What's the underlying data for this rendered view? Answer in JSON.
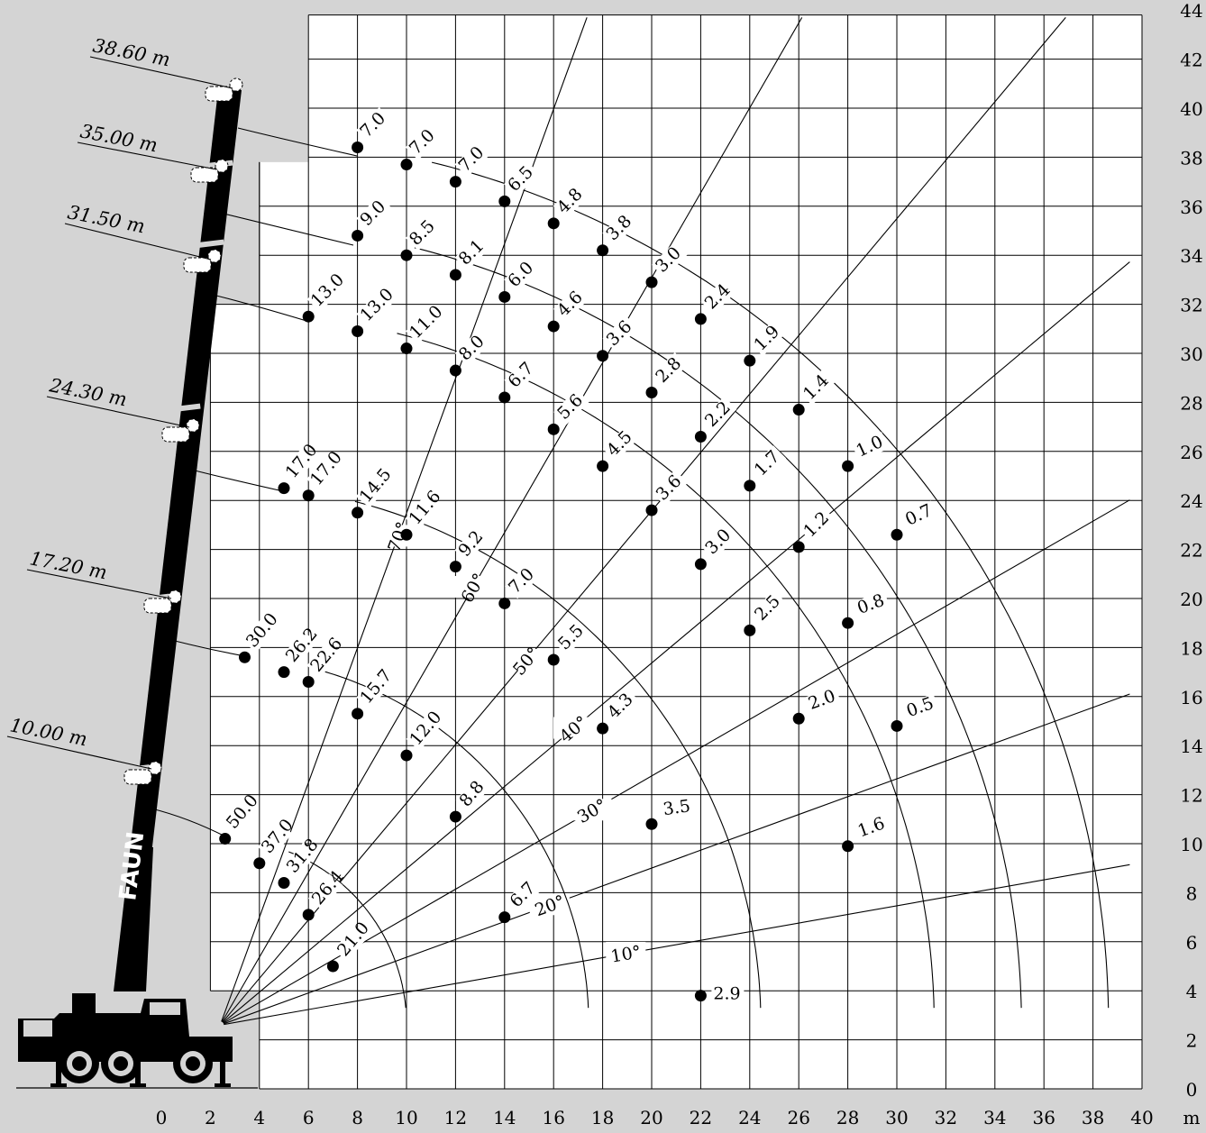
{
  "chart_data": {
    "type": "scatter",
    "title": "",
    "xlabel": "",
    "ylabel": "",
    "x_unit": "m",
    "xlim": [
      0,
      40
    ],
    "ylim": [
      0,
      44
    ],
    "x_ticks": [
      0,
      2,
      4,
      6,
      8,
      10,
      12,
      14,
      16,
      18,
      20,
      22,
      24,
      26,
      28,
      30,
      32,
      34,
      36,
      38,
      40
    ],
    "y_ticks": [
      0,
      2,
      4,
      6,
      8,
      10,
      12,
      14,
      16,
      18,
      20,
      22,
      24,
      26,
      28,
      30,
      32,
      34,
      36,
      38,
      40,
      42,
      44
    ],
    "grid": true,
    "boom_lengths": [
      "10.00 m",
      "17.20 m",
      "24.30 m",
      "31.50 m",
      "35.00 m",
      "38.60 m"
    ],
    "angles": [
      "10°",
      "20°",
      "30°",
      "40°",
      "50°",
      "60°",
      "70°"
    ],
    "series": [
      {
        "name": "10.00 m",
        "points": [
          {
            "x": 2.6,
            "y": 10.2,
            "label": "50.0"
          },
          {
            "x": 4.0,
            "y": 9.2,
            "label": "37.0"
          },
          {
            "x": 5.0,
            "y": 8.4,
            "label": "31.8"
          },
          {
            "x": 6.0,
            "y": 7.1,
            "label": "26.4"
          },
          {
            "x": 7.0,
            "y": 5.0,
            "label": "21.0"
          }
        ]
      },
      {
        "name": "17.20 m",
        "points": [
          {
            "x": 3.4,
            "y": 17.6,
            "label": "30.0"
          },
          {
            "x": 5.0,
            "y": 17.0,
            "label": "26.2"
          },
          {
            "x": 6.0,
            "y": 16.6,
            "label": "22.6"
          },
          {
            "x": 8.0,
            "y": 15.3,
            "label": "15.7"
          },
          {
            "x": 10.0,
            "y": 13.6,
            "label": "12.0"
          },
          {
            "x": 12.0,
            "y": 11.1,
            "label": "8.8"
          },
          {
            "x": 14.0,
            "y": 7.0,
            "label": "6.7"
          }
        ]
      },
      {
        "name": "24.30 m",
        "points": [
          {
            "x": 5.0,
            "y": 24.5,
            "label": "17.0"
          },
          {
            "x": 6.0,
            "y": 24.2,
            "label": "17.0"
          },
          {
            "x": 8.0,
            "y": 23.5,
            "label": "14.5"
          },
          {
            "x": 10.0,
            "y": 22.6,
            "label": "11.6"
          },
          {
            "x": 12.0,
            "y": 21.3,
            "label": "9.2"
          },
          {
            "x": 14.0,
            "y": 19.8,
            "label": "7.0"
          },
          {
            "x": 16.0,
            "y": 17.5,
            "label": "5.5"
          },
          {
            "x": 18.0,
            "y": 14.7,
            "label": "4.3"
          },
          {
            "x": 20.0,
            "y": 10.8,
            "label": "3.5"
          },
          {
            "x": 22.0,
            "y": 3.8,
            "label": "2.9"
          }
        ]
      },
      {
        "name": "31.50 m",
        "points": [
          {
            "x": 6.0,
            "y": 31.5,
            "label": "13.0"
          },
          {
            "x": 8.0,
            "y": 30.9,
            "label": "13.0"
          },
          {
            "x": 10.0,
            "y": 30.2,
            "label": "11.0"
          },
          {
            "x": 12.0,
            "y": 29.3,
            "label": "8.0"
          },
          {
            "x": 14.0,
            "y": 28.2,
            "label": "6.7"
          },
          {
            "x": 16.0,
            "y": 26.9,
            "label": "5.6"
          },
          {
            "x": 18.0,
            "y": 25.4,
            "label": "4.5"
          },
          {
            "x": 20.0,
            "y": 23.6,
            "label": "3.6"
          },
          {
            "x": 22.0,
            "y": 21.4,
            "label": "3.0"
          },
          {
            "x": 24.0,
            "y": 18.7,
            "label": "2.5"
          },
          {
            "x": 26.0,
            "y": 15.1,
            "label": "2.0"
          },
          {
            "x": 28.0,
            "y": 9.9,
            "label": "1.6"
          }
        ]
      },
      {
        "name": "35.00 m",
        "points": [
          {
            "x": 8.0,
            "y": 34.8,
            "label": "9.0"
          },
          {
            "x": 10.0,
            "y": 34.0,
            "label": "8.5"
          },
          {
            "x": 12.0,
            "y": 33.2,
            "label": "8.1"
          },
          {
            "x": 14.0,
            "y": 32.3,
            "label": "6.0"
          },
          {
            "x": 16.0,
            "y": 31.1,
            "label": "4.6"
          },
          {
            "x": 18.0,
            "y": 29.9,
            "label": "3.6"
          },
          {
            "x": 20.0,
            "y": 28.4,
            "label": "2.8"
          },
          {
            "x": 22.0,
            "y": 26.6,
            "label": "2.2"
          },
          {
            "x": 24.0,
            "y": 24.6,
            "label": "1.7"
          },
          {
            "x": 26.0,
            "y": 22.1,
            "label": "1.2"
          },
          {
            "x": 28.0,
            "y": 19.0,
            "label": "0.8"
          },
          {
            "x": 30.0,
            "y": 14.8,
            "label": "0.5"
          }
        ]
      },
      {
        "name": "38.60 m",
        "points": [
          {
            "x": 8.0,
            "y": 38.4,
            "label": "7.0"
          },
          {
            "x": 10.0,
            "y": 37.7,
            "label": "7.0"
          },
          {
            "x": 12.0,
            "y": 37.0,
            "label": "7.0"
          },
          {
            "x": 14.0,
            "y": 36.2,
            "label": "6.5"
          },
          {
            "x": 16.0,
            "y": 35.3,
            "label": "4.8"
          },
          {
            "x": 18.0,
            "y": 34.2,
            "label": "3.8"
          },
          {
            "x": 20.0,
            "y": 32.9,
            "label": "3.0"
          },
          {
            "x": 22.0,
            "y": 31.4,
            "label": "2.4"
          },
          {
            "x": 24.0,
            "y": 29.7,
            "label": "1.9"
          },
          {
            "x": 26.0,
            "y": 27.7,
            "label": "1.4"
          },
          {
            "x": 28.0,
            "y": 25.4,
            "label": "1.0"
          },
          {
            "x": 30.0,
            "y": 22.6,
            "label": "0.7"
          }
        ]
      }
    ]
  },
  "vehicle": {
    "brand": "FAUN"
  }
}
